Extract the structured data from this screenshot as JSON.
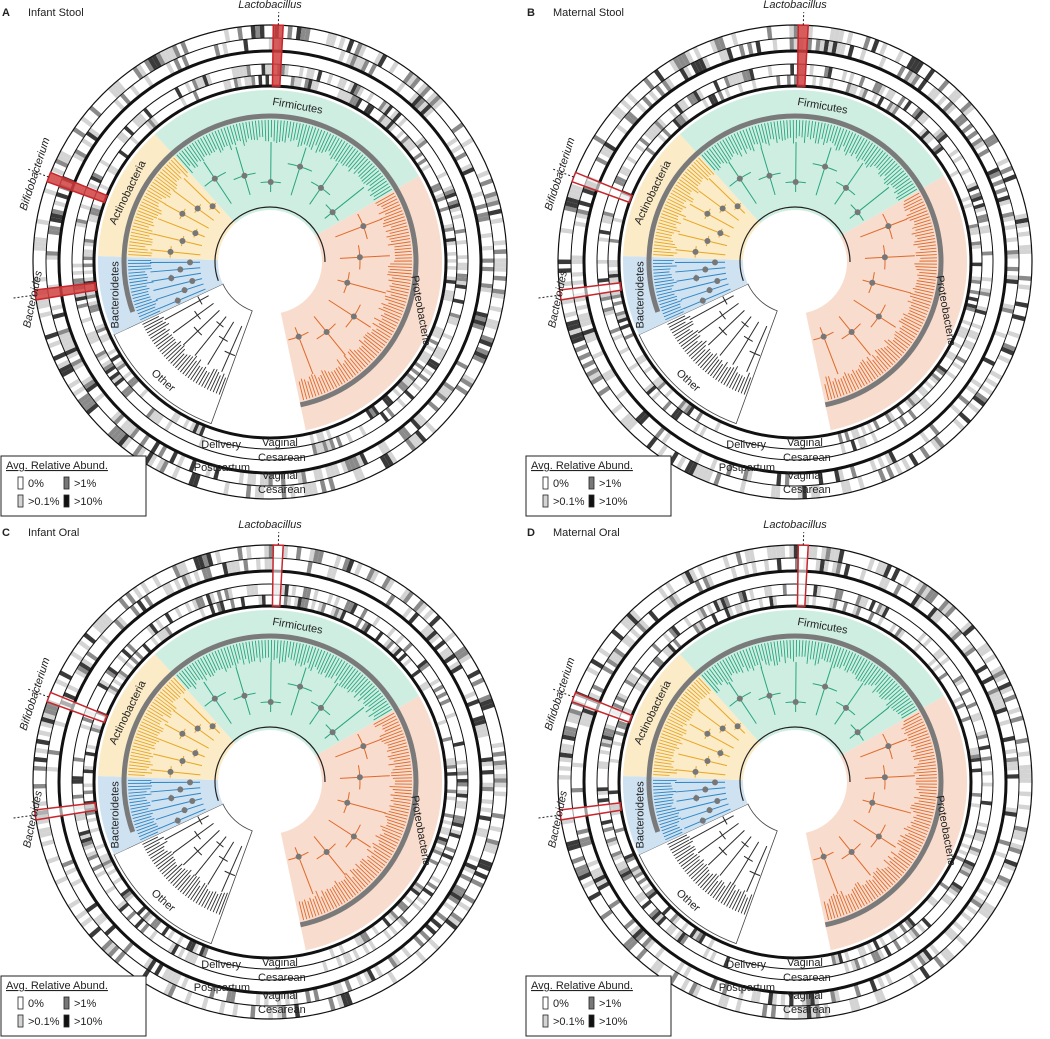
{
  "panels": [
    {
      "letter": "A",
      "title": "Infant Stool"
    },
    {
      "letter": "B",
      "title": "Maternal Stool"
    },
    {
      "letter": "C",
      "title": "Infant Oral"
    },
    {
      "letter": "D",
      "title": "Maternal Oral"
    }
  ],
  "genera": [
    "Lactobacillus",
    "Bifidobacterium",
    "Bacteroides"
  ],
  "phyla": [
    "Firmicutes",
    "Proteobacteria",
    "Other",
    "Bacteroidetes",
    "Actinobacteria"
  ],
  "ring_labels": {
    "delivery": "Delivery",
    "delivery_vaginal": "Vaginal",
    "delivery_cesarean": "Cesarean",
    "postpartum": "Postpartum",
    "postpartum_vaginal": "Vaginal",
    "postpartum_cesarean": "Cesarean"
  },
  "legend": {
    "title": "Avg. Relative Abund.",
    "levels": [
      "0%",
      ">0.1%",
      ">1%",
      ">10%"
    ]
  }
}
